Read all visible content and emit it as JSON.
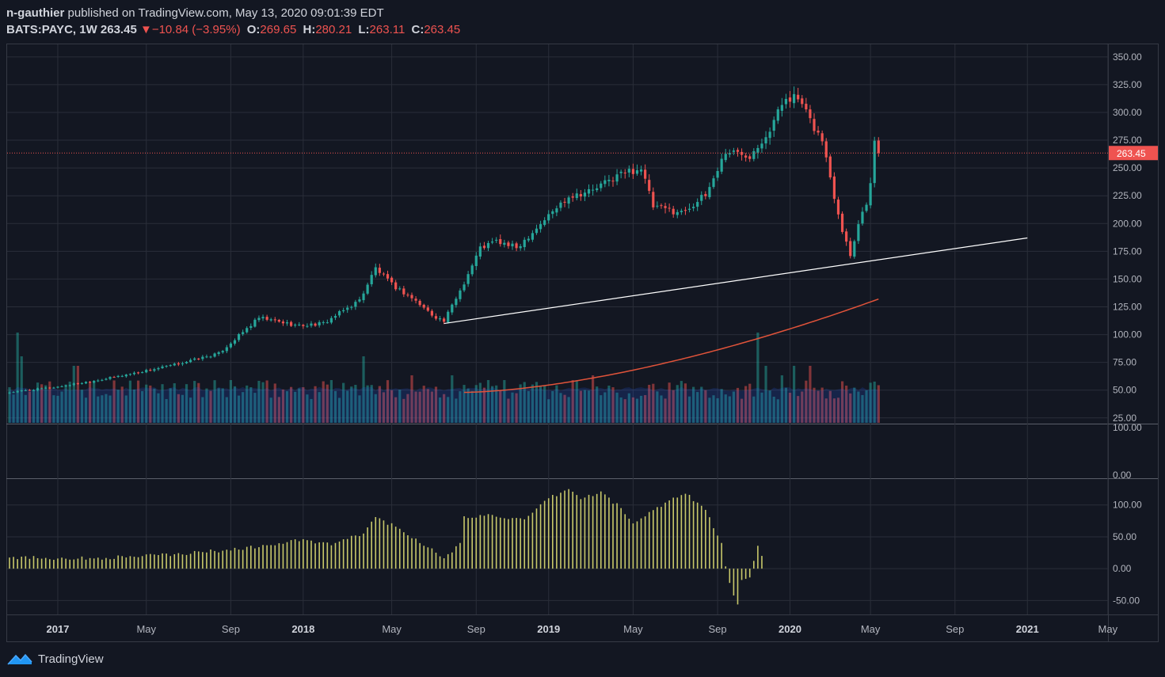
{
  "header": {
    "line1_user": "n-gauthier",
    "line1_rest": "published on TradingView.com, May 13, 2020 09:01:39 EDT",
    "symbol": "BATS:PAYC, 1W",
    "last": "263.45",
    "change": "−10.84 (−3.95%)",
    "o_label": "O:",
    "o_value": "269.65",
    "h_label": "H:",
    "h_value": "280.21",
    "l_label": "L:",
    "l_value": "263.11",
    "c_label": "C:",
    "c_value": "263.45"
  },
  "footer": {
    "brand": "TradingView"
  },
  "colors": {
    "background": "#131722",
    "up": "#26a69a",
    "down": "#ef5350",
    "volume_up": "#26a69a",
    "volume_down": "#ef5350",
    "ma": "#e0533a",
    "trendline": "#ffffff",
    "oscillator": "#c8c86a",
    "price_line": "#ef5350",
    "grid": "#2a2e39"
  },
  "chart_data": [
    {
      "type": "candlestick",
      "interval": "1W",
      "price_axis": {
        "ticks": [
          "25.00",
          "50.00",
          "75.00",
          "100.00",
          "125.00",
          "150.00",
          "175.00",
          "200.00",
          "225.00",
          "250.00",
          "275.00",
          "300.00",
          "325.00",
          "350.00"
        ],
        "range": [
          22,
          357
        ]
      },
      "time_axis": {
        "ticks": [
          "2017",
          "May",
          "Sep",
          "2018",
          "May",
          "Sep",
          "2019",
          "May",
          "Sep",
          "2020",
          "May",
          "Sep",
          "2021",
          "May"
        ]
      },
      "last_price_label": "263.45",
      "anchors": [
        [
          0,
          48
        ],
        [
          12,
          53
        ],
        [
          25,
          61
        ],
        [
          40,
          72
        ],
        [
          52,
          83
        ],
        [
          62,
          115
        ],
        [
          72,
          108
        ],
        [
          78,
          110
        ],
        [
          87,
          131
        ],
        [
          91,
          160
        ],
        [
          95,
          145
        ],
        [
          100,
          133
        ],
        [
          105,
          118
        ],
        [
          108,
          112
        ],
        [
          113,
          147
        ],
        [
          117,
          178
        ],
        [
          121,
          184
        ],
        [
          126,
          178
        ],
        [
          132,
          200
        ],
        [
          139,
          225
        ],
        [
          145,
          230
        ],
        [
          152,
          245
        ],
        [
          157,
          250
        ],
        [
          160,
          215
        ],
        [
          167,
          210
        ],
        [
          173,
          225
        ],
        [
          178,
          265
        ],
        [
          184,
          262
        ],
        [
          189,
          285
        ],
        [
          193,
          315
        ],
        [
          196,
          312
        ],
        [
          199,
          292
        ],
        [
          202,
          275
        ],
        [
          205,
          225
        ],
        [
          207,
          195
        ],
        [
          209,
          172
        ],
        [
          211,
          200
        ],
        [
          213,
          220
        ],
        [
          214,
          235
        ],
        [
          215,
          272
        ],
        [
          216,
          263.45
        ]
      ],
      "candle_count": 217,
      "wick_pct": 0.015,
      "moving_average": {
        "start": [
          113,
          48
        ],
        "end": [
          216,
          132
        ],
        "label": ""
      },
      "trendline": {
        "from_bar": 108,
        "from_price": 110,
        "to_bar": 253,
        "to_price": 187
      },
      "volume": {
        "baseline_share": 0.45,
        "spikes": [
          [
            2,
            0.95
          ],
          [
            3,
            0.7
          ],
          [
            16,
            0.6
          ],
          [
            17,
            0.6
          ],
          [
            55,
            0.45
          ],
          [
            80,
            0.45
          ],
          [
            83,
            0.42
          ],
          [
            88,
            0.7
          ],
          [
            100,
            0.5
          ],
          [
            110,
            0.5
          ],
          [
            119,
            0.45
          ],
          [
            123,
            0.45
          ],
          [
            140,
            0.45
          ],
          [
            145,
            0.5
          ],
          [
            159,
            0.4
          ],
          [
            186,
            0.95
          ],
          [
            188,
            0.6
          ],
          [
            192,
            0.5
          ],
          [
            195,
            0.6
          ],
          [
            199,
            0.6
          ]
        ]
      },
      "volume_scale_ticks": [
        "100.00",
        "0.00"
      ]
    },
    {
      "type": "bar",
      "name": "oscillator",
      "ticks": [
        "100.00",
        "50.00",
        "0.00",
        "-50.00"
      ],
      "range": [
        -62,
        132
      ],
      "anchors": [
        [
          0,
          18
        ],
        [
          20,
          16
        ],
        [
          40,
          22
        ],
        [
          55,
          30
        ],
        [
          65,
          37
        ],
        [
          72,
          45
        ],
        [
          80,
          38
        ],
        [
          88,
          55
        ],
        [
          91,
          82
        ],
        [
          96,
          65
        ],
        [
          104,
          35
        ],
        [
          108,
          14
        ],
        [
          112,
          40
        ],
        [
          113,
          80
        ],
        [
          120,
          85
        ],
        [
          128,
          75
        ],
        [
          134,
          110
        ],
        [
          139,
          125
        ],
        [
          142,
          110
        ],
        [
          147,
          120
        ],
        [
          152,
          95
        ],
        [
          155,
          70
        ],
        [
          162,
          100
        ],
        [
          168,
          120
        ],
        [
          173,
          92
        ],
        [
          177,
          38
        ],
        [
          179,
          -25
        ],
        [
          181,
          -58
        ],
        [
          182,
          -20
        ],
        [
          184,
          -15
        ],
        [
          185,
          10
        ],
        [
          186,
          35
        ],
        [
          187,
          22
        ]
      ]
    }
  ]
}
